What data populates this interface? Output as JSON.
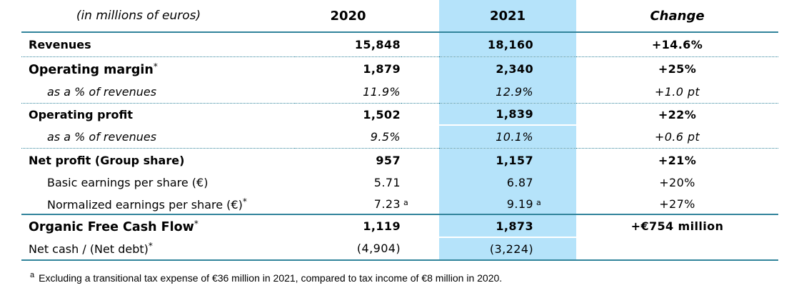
{
  "unit_label": "(in millions of euros)",
  "columns": {
    "y2020": "2020",
    "y2021": "2021",
    "change": "Change"
  },
  "rows": [
    {
      "label": "Revenues",
      "v2020": "15,848",
      "v2021": "18,160",
      "change": "+14.6%"
    },
    {
      "label": "Operating margin",
      "sup": "*",
      "v2020": "1,879",
      "v2021": "2,340",
      "change": "+25%"
    },
    {
      "label": "as a % of revenues",
      "v2020": "11.9%",
      "v2021": "12.9%",
      "change": "+1.0 pt"
    },
    {
      "label": "Operating profit",
      "v2020": "1,502",
      "v2021": "1,839",
      "change": "+22%"
    },
    {
      "label": "as a % of revenues",
      "v2020": "9.5%",
      "v2021": "10.1%",
      "change": "+0.6 pt"
    },
    {
      "label": "Net profit (Group share)",
      "v2020": "957",
      "v2021": "1,157",
      "change": "+21%"
    },
    {
      "label": "Basic earnings per share (€)",
      "v2020": "5.71",
      "v2021": "6.87",
      "change": "+20%"
    },
    {
      "label": "Normalized earnings per share (€)",
      "sup": "*",
      "v2020": "7.23",
      "v2020_sup": "a",
      "v2021": "9.19",
      "v2021_sup": "a",
      "change": "+27%"
    },
    {
      "label": "Organic Free Cash Flow",
      "sup": "*",
      "v2020": "1,119",
      "v2021": "1,873",
      "change": "+€754 million"
    },
    {
      "label": "Net cash / (Net debt)",
      "sup": "*",
      "v2020": "(4,904)",
      "v2021": "(3,224)",
      "change": ""
    }
  ],
  "footnote": {
    "marker": "a",
    "text": "Excluding a transitional tax expense of €36 million in 2021, compared to tax income of €8 million in 2020."
  },
  "colors": {
    "highlight_column": "#B5E3FA",
    "rule_line": "#31849B"
  }
}
